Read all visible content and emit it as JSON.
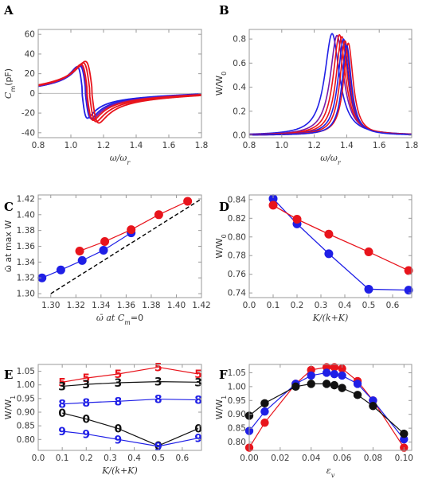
{
  "panels": {
    "A": {
      "letter": "A",
      "xlabel": "ω/ω",
      "xlabel_sub": "r",
      "ylabel": "C",
      "ylabel_sub": "m",
      "ylabel_unit": "(pF)"
    },
    "B": {
      "letter": "B",
      "xlabel": "ω/ω",
      "xlabel_sub": "r",
      "ylabel": "W/W",
      "ylabel_sub": "0"
    },
    "C": {
      "letter": "C",
      "xlabel": "ω̄ at C",
      "xlabel_sub": "m",
      "xlabel_tail": "=0",
      "ylabel": "ω̄ at max W"
    },
    "D": {
      "letter": "D",
      "xlabel": "K/(k+K)",
      "ylabel": "W/W",
      "ylabel_sub": "0"
    },
    "E": {
      "letter": "E",
      "xlabel": "K/(k+K)",
      "ylabel": "W/W",
      "ylabel_sub": "1"
    },
    "F": {
      "letter": "F",
      "xlabel": "ε",
      "xlabel_sub": "v",
      "ylabel": "W/W",
      "ylabel_sub": "1"
    }
  },
  "colors": {
    "red": "#e8141c",
    "blue": "#1f1fe6",
    "black": "#111111",
    "purple": "#7a1aa8",
    "axis": "#999999"
  },
  "chart_data": [
    {
      "id": "A",
      "type": "line",
      "xlim": [
        0.8,
        1.8
      ],
      "ylim": [
        -45,
        65
      ],
      "xticks": [
        "0.8",
        "1.0",
        "1.2",
        "1.4",
        "1.6",
        "1.8"
      ],
      "yticks": [
        "-40",
        "-20",
        "0",
        "20",
        "40",
        "60"
      ],
      "curve_model": "dispersive",
      "series": [
        {
          "color": "blue",
          "f0": 1.07,
          "w": 0.032,
          "A": 2.45,
          "C": 38
        },
        {
          "color": "blue",
          "f0": 1.09,
          "w": 0.034,
          "A": 2.5,
          "C": 38
        },
        {
          "color": "purple",
          "f0": 1.095,
          "w": 0.036,
          "A": 2.6,
          "C": 38
        },
        {
          "color": "red",
          "f0": 1.1,
          "w": 0.038,
          "A": 2.7,
          "C": 38
        },
        {
          "color": "red",
          "f0": 1.115,
          "w": 0.04,
          "A": 2.85,
          "C": 38
        },
        {
          "color": "red",
          "f0": 1.13,
          "w": 0.042,
          "A": 3.0,
          "C": 38
        }
      ]
    },
    {
      "id": "B",
      "type": "line",
      "xlim": [
        0.8,
        1.8
      ],
      "ylim": [
        -0.02,
        0.88
      ],
      "xticks": [
        "0.8",
        "1.0",
        "1.2",
        "1.4",
        "1.6",
        "1.8"
      ],
      "yticks": [
        "0.0",
        "0.2",
        "0.4",
        "0.6",
        "0.8"
      ],
      "curve_model": "lorentzian",
      "series": [
        {
          "color": "blue",
          "x0": 1.31,
          "gamma": 0.055,
          "peak": 0.845
        },
        {
          "color": "purple",
          "x0": 1.34,
          "gamma": 0.05,
          "peak": 0.83
        },
        {
          "color": "red",
          "x0": 1.355,
          "gamma": 0.046,
          "peak": 0.835
        },
        {
          "color": "red",
          "x0": 1.37,
          "gamma": 0.043,
          "peak": 0.82
        },
        {
          "color": "blue",
          "x0": 1.38,
          "gamma": 0.04,
          "peak": 0.8
        },
        {
          "color": "red",
          "x0": 1.39,
          "gamma": 0.038,
          "peak": 0.785
        },
        {
          "color": "red",
          "x0": 1.41,
          "gamma": 0.036,
          "peak": 0.765
        },
        {
          "color": "blue",
          "x0": 1.4,
          "gamma": 0.035,
          "peak": 0.745
        }
      ]
    },
    {
      "id": "C",
      "type": "scatter",
      "xlim": [
        1.29,
        1.42
      ],
      "ylim": [
        1.295,
        1.425
      ],
      "xticks": [
        "1.30",
        "1.32",
        "1.34",
        "1.36",
        "1.38",
        "1.40",
        "1.42"
      ],
      "yticks": [
        "1.30",
        "1.32",
        "1.34",
        "1.36",
        "1.38",
        "1.40",
        "1.42"
      ],
      "reference_line": {
        "x": [
          1.3,
          1.42
        ],
        "y": [
          1.3,
          1.42
        ],
        "style": "dashed"
      },
      "series": [
        {
          "color": "blue",
          "x": [
            1.293,
            1.308,
            1.325,
            1.342,
            1.364
          ],
          "y": [
            1.32,
            1.33,
            1.342,
            1.355,
            1.377
          ]
        },
        {
          "color": "red",
          "x": [
            1.323,
            1.343,
            1.364,
            1.386,
            1.409
          ],
          "y": [
            1.354,
            1.366,
            1.381,
            1.4,
            1.417
          ]
        }
      ]
    },
    {
      "id": "D",
      "type": "line",
      "xlim": [
        0.0,
        0.68
      ],
      "ylim": [
        0.735,
        0.845
      ],
      "xticks": [
        "0.0",
        "0.1",
        "0.2",
        "0.3",
        "0.4",
        "0.5",
        "0.6"
      ],
      "yticks": [
        "0.74",
        "0.76",
        "0.78",
        "0.80",
        "0.82",
        "0.84"
      ],
      "series": [
        {
          "color": "blue",
          "x": [
            0.1,
            0.2,
            0.333,
            0.5,
            0.667
          ],
          "y": [
            0.841,
            0.814,
            0.782,
            0.744,
            0.743
          ]
        },
        {
          "color": "red",
          "x": [
            0.1,
            0.2,
            0.333,
            0.5,
            0.667
          ],
          "y": [
            0.834,
            0.819,
            0.803,
            0.784,
            0.764
          ]
        }
      ]
    },
    {
      "id": "E",
      "type": "line",
      "xlim": [
        0.0,
        0.68
      ],
      "ylim": [
        0.76,
        1.075
      ],
      "xticks": [
        "0.0",
        "0.1",
        "0.2",
        "0.3",
        "0.4",
        "0.5",
        "0.6"
      ],
      "yticks": [
        "0.80",
        "0.85",
        "0.90",
        "0.95",
        "1.00",
        "1.05"
      ],
      "series": [
        {
          "color": "red",
          "marker": "5",
          "x": [
            0.1,
            0.2,
            0.333,
            0.5,
            0.667
          ],
          "y": [
            1.01,
            1.025,
            1.04,
            1.065,
            1.04
          ]
        },
        {
          "color": "black",
          "marker": "3",
          "x": [
            0.1,
            0.2,
            0.333,
            0.5,
            0.667
          ],
          "y": [
            0.995,
            1.002,
            1.008,
            1.012,
            1.01
          ]
        },
        {
          "color": "blue",
          "marker": "8",
          "x": [
            0.1,
            0.2,
            0.333,
            0.5,
            0.667
          ],
          "y": [
            0.93,
            0.935,
            0.94,
            0.948,
            0.945
          ]
        },
        {
          "color": "black",
          "marker": "0",
          "x": [
            0.1,
            0.2,
            0.333,
            0.5,
            0.667
          ],
          "y": [
            0.897,
            0.875,
            0.84,
            0.777,
            0.84
          ]
        },
        {
          "color": "blue",
          "marker": "9",
          "x": [
            0.1,
            0.2,
            0.333,
            0.5,
            0.667
          ],
          "y": [
            0.83,
            0.82,
            0.8,
            0.775,
            0.805
          ]
        }
      ]
    },
    {
      "id": "F",
      "type": "line",
      "xlim": [
        0.0,
        0.105
      ],
      "ylim": [
        0.77,
        1.08
      ],
      "xticks": [
        "0.00",
        "0.02",
        "0.04",
        "0.06",
        "0.08",
        "0.10"
      ],
      "yticks": [
        "0.80",
        "0.85",
        "0.90",
        "0.95",
        "1.00",
        "1.05"
      ],
      "series": [
        {
          "color": "red",
          "x": [
            0.0,
            0.01,
            0.03,
            0.04,
            0.05,
            0.055,
            0.06,
            0.07,
            0.08,
            0.1
          ],
          "y": [
            0.78,
            0.87,
            1.01,
            1.06,
            1.07,
            1.07,
            1.065,
            1.02,
            0.95,
            0.78
          ]
        },
        {
          "color": "blue",
          "x": [
            0.0,
            0.01,
            0.03,
            0.04,
            0.05,
            0.055,
            0.06,
            0.07,
            0.08,
            0.1
          ],
          "y": [
            0.84,
            0.91,
            1.01,
            1.04,
            1.05,
            1.045,
            1.04,
            1.01,
            0.95,
            0.81
          ]
        },
        {
          "color": "black",
          "x": [
            0.0,
            0.01,
            0.03,
            0.04,
            0.05,
            0.055,
            0.06,
            0.07,
            0.08,
            0.1
          ],
          "y": [
            0.895,
            0.94,
            1.0,
            1.01,
            1.01,
            1.005,
            0.995,
            0.97,
            0.93,
            0.83
          ]
        }
      ]
    }
  ]
}
